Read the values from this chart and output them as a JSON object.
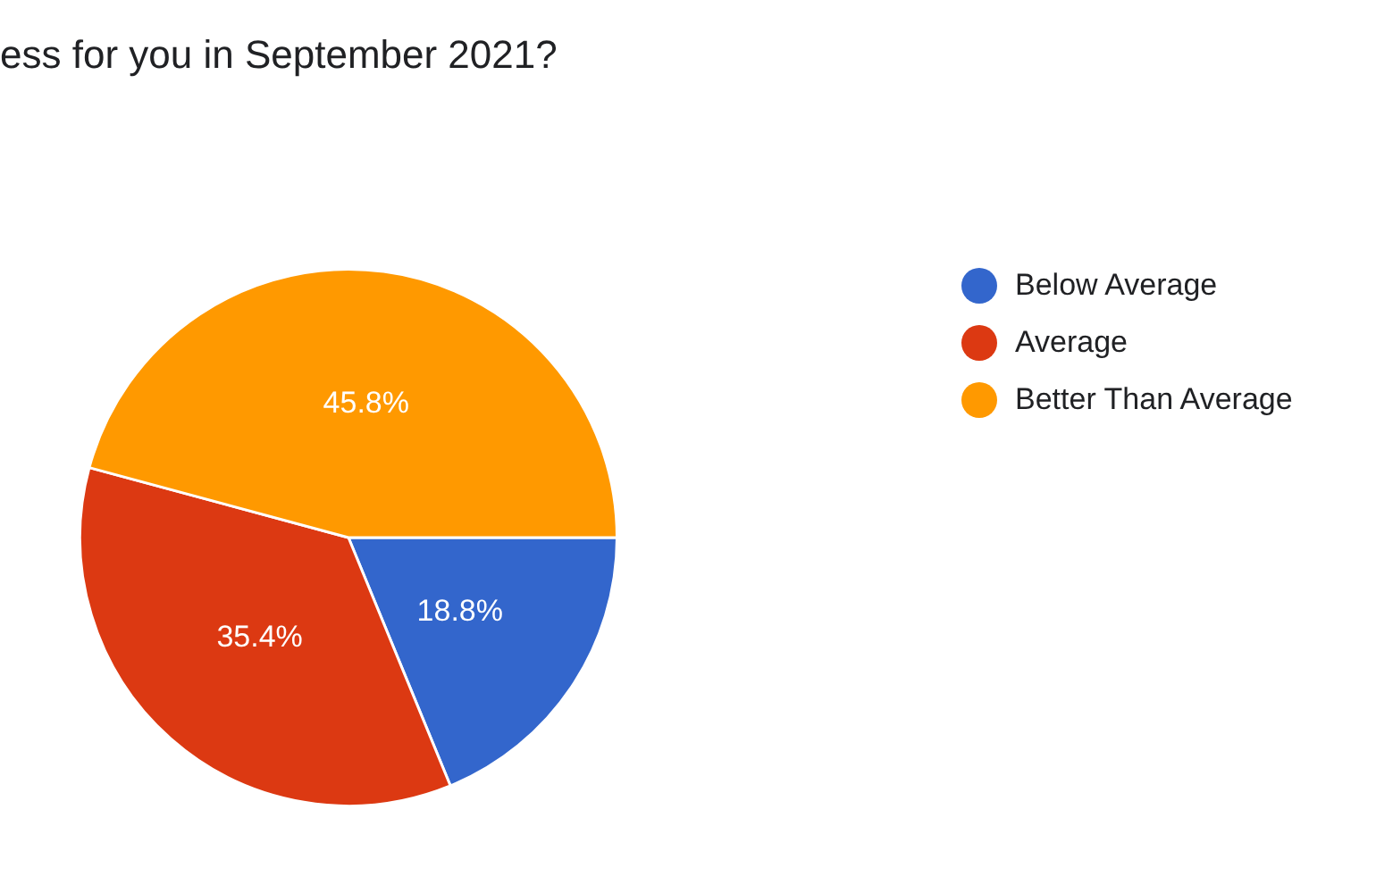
{
  "chart_data": {
    "type": "pie",
    "title": "ess for you in September 2021?",
    "categories": [
      "Below Average",
      "Average",
      "Better Than Average"
    ],
    "values": [
      18.8,
      35.4,
      45.8
    ],
    "colors": [
      "#3366cc",
      "#dc3912",
      "#ff9900"
    ],
    "value_labels": [
      "18.8%",
      "35.4%",
      "45.8%"
    ],
    "legend": "right"
  }
}
